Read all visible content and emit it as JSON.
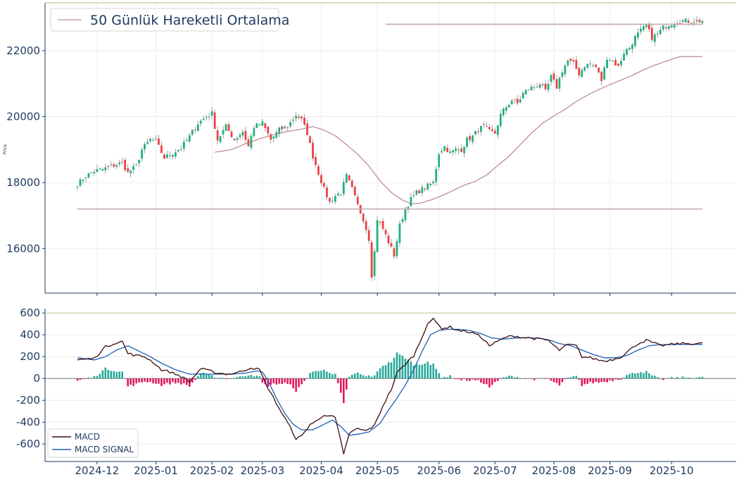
{
  "colors": {
    "up": "#1db07a",
    "down": "#ef3e3e",
    "wick": "#8e8e8e",
    "ma": "#b06e83",
    "hline": "#c3a8b3",
    "macd": "#3b0b0b",
    "signal": "#1f5fb8",
    "hist_pos": "#27a79a",
    "hist_neg": "#e0165d",
    "axis": "#1e3a5f",
    "grid": "#ececec",
    "top_line": "#c8c39a"
  },
  "price_panel": {
    "ylabel": "Price",
    "yticks": [
      16000,
      18000,
      20000,
      22000
    ],
    "ylim": [
      14650,
      23450
    ],
    "legend": {
      "label": "50 Günlük Hareketli Ortalama"
    }
  },
  "macd_panel": {
    "yticks": [
      600,
      400,
      200,
      0,
      -200,
      -400,
      -600
    ],
    "ylim": [
      -760,
      640
    ],
    "legend": {
      "macd_label": "MACD",
      "signal_label": "MACD SIGNAL"
    }
  },
  "xaxis": {
    "labels": [
      "2024-12",
      "2025-01",
      "2025-02",
      "2025-03",
      "2025-04",
      "2025-05",
      "2025-06",
      "2025-07",
      "2025-08",
      "2025-09",
      "2025-10"
    ],
    "tick_index": [
      7,
      28,
      48,
      66,
      87,
      107,
      129,
      149,
      170,
      190,
      212
    ]
  },
  "chart_data": [
    {
      "type": "candlestick",
      "title": "",
      "ylabel": "Price",
      "n_points": 224,
      "start_date": "2024-11-25",
      "end_date": "2025-10-03",
      "close_anchors": [
        [
          0,
          17950
        ],
        [
          3,
          18200
        ],
        [
          6,
          18350
        ],
        [
          9,
          18400
        ],
        [
          12,
          18500
        ],
        [
          16,
          18600
        ],
        [
          18,
          18300
        ],
        [
          21,
          18500
        ],
        [
          23,
          19000
        ],
        [
          26,
          19300
        ],
        [
          28,
          19250
        ],
        [
          31,
          18750
        ],
        [
          34,
          18900
        ],
        [
          37,
          19050
        ],
        [
          40,
          19400
        ],
        [
          43,
          19800
        ],
        [
          46,
          20000
        ],
        [
          48,
          20100
        ],
        [
          50,
          19300
        ],
        [
          53,
          19700
        ],
        [
          56,
          19300
        ],
        [
          59,
          19550
        ],
        [
          61,
          19100
        ],
        [
          63,
          19700
        ],
        [
          66,
          19800
        ],
        [
          69,
          19300
        ],
        [
          72,
          19600
        ],
        [
          75,
          19700
        ],
        [
          78,
          20050
        ],
        [
          80,
          19900
        ],
        [
          82,
          19500
        ],
        [
          84,
          18800
        ],
        [
          86,
          18300
        ],
        [
          88,
          17800
        ],
        [
          90,
          17400
        ],
        [
          92,
          17600
        ],
        [
          94,
          17700
        ],
        [
          96,
          18200
        ],
        [
          98,
          17800
        ],
        [
          100,
          17300
        ],
        [
          102,
          16900
        ],
        [
          104,
          16300
        ],
        [
          105,
          15200
        ],
        [
          106,
          15900
        ],
        [
          107,
          16900
        ],
        [
          109,
          16600
        ],
        [
          111,
          16200
        ],
        [
          113,
          15800
        ],
        [
          115,
          16700
        ],
        [
          117,
          17200
        ],
        [
          119,
          17500
        ],
        [
          121,
          17700
        ],
        [
          124,
          17850
        ],
        [
          127,
          18000
        ],
        [
          129,
          18900
        ],
        [
          131,
          19100
        ],
        [
          133,
          18900
        ],
        [
          135,
          19000
        ],
        [
          137,
          19000
        ],
        [
          139,
          19300
        ],
        [
          141,
          19400
        ],
        [
          143,
          19600
        ],
        [
          145,
          19700
        ],
        [
          147,
          19550
        ],
        [
          149,
          19500
        ],
        [
          151,
          20050
        ],
        [
          153,
          20300
        ],
        [
          155,
          20500
        ],
        [
          157,
          20400
        ],
        [
          159,
          20700
        ],
        [
          161,
          20850
        ],
        [
          163,
          20900
        ],
        [
          165,
          21000
        ],
        [
          167,
          20750
        ],
        [
          169,
          21200
        ],
        [
          171,
          20900
        ],
        [
          173,
          21400
        ],
        [
          175,
          21700
        ],
        [
          177,
          21600
        ],
        [
          179,
          21300
        ],
        [
          181,
          21550
        ],
        [
          183,
          21600
        ],
        [
          185,
          21500
        ],
        [
          187,
          21100
        ],
        [
          189,
          21800
        ],
        [
          191,
          21700
        ],
        [
          193,
          21500
        ],
        [
          195,
          21950
        ],
        [
          197,
          22100
        ],
        [
          199,
          22400
        ],
        [
          201,
          22600
        ],
        [
          203,
          22750
        ],
        [
          205,
          22400
        ],
        [
          207,
          22500
        ],
        [
          209,
          22700
        ],
        [
          211,
          22800
        ],
        [
          213,
          22850
        ],
        [
          215,
          22900
        ]
      ],
      "ma_start_index": 49,
      "ma_anchors": [
        [
          49,
          18920
        ],
        [
          55,
          19000
        ],
        [
          60,
          19180
        ],
        [
          65,
          19330
        ],
        [
          70,
          19450
        ],
        [
          75,
          19550
        ],
        [
          80,
          19620
        ],
        [
          84,
          19700
        ],
        [
          88,
          19590
        ],
        [
          92,
          19420
        ],
        [
          96,
          19150
        ],
        [
          100,
          18860
        ],
        [
          104,
          18500
        ],
        [
          108,
          18050
        ],
        [
          112,
          17700
        ],
        [
          116,
          17470
        ],
        [
          119,
          17360
        ],
        [
          122,
          17370
        ],
        [
          126,
          17470
        ],
        [
          130,
          17600
        ],
        [
          134,
          17760
        ],
        [
          138,
          17920
        ],
        [
          142,
          18040
        ],
        [
          146,
          18230
        ],
        [
          150,
          18520
        ],
        [
          154,
          18800
        ],
        [
          158,
          19150
        ],
        [
          162,
          19500
        ],
        [
          166,
          19800
        ],
        [
          170,
          20020
        ],
        [
          174,
          20220
        ],
        [
          178,
          20460
        ],
        [
          182,
          20650
        ],
        [
          186,
          20820
        ],
        [
          190,
          20970
        ],
        [
          194,
          21110
        ],
        [
          198,
          21250
        ],
        [
          202,
          21420
        ],
        [
          206,
          21560
        ],
        [
          210,
          21680
        ],
        [
          215,
          21820
        ]
      ],
      "horizontal_lines": [
        22800,
        17200
      ],
      "series": [
        {
          "name": "50 Günlük Hareketli Ortalama",
          "type": "line"
        }
      ]
    },
    {
      "type": "line",
      "title": "",
      "macd_anchors": [
        [
          0,
          170
        ],
        [
          6,
          185
        ],
        [
          10,
          290
        ],
        [
          14,
          330
        ],
        [
          16,
          340
        ],
        [
          18,
          230
        ],
        [
          21,
          210
        ],
        [
          24,
          200
        ],
        [
          27,
          150
        ],
        [
          30,
          80
        ],
        [
          33,
          60
        ],
        [
          37,
          20
        ],
        [
          40,
          -30
        ],
        [
          44,
          90
        ],
        [
          47,
          70
        ],
        [
          50,
          50
        ],
        [
          54,
          40
        ],
        [
          58,
          60
        ],
        [
          62,
          100
        ],
        [
          65,
          80
        ],
        [
          67,
          -40
        ],
        [
          70,
          -180
        ],
        [
          73,
          -320
        ],
        [
          76,
          -450
        ],
        [
          78,
          -550
        ],
        [
          80,
          -530
        ],
        [
          83,
          -420
        ],
        [
          86,
          -380
        ],
        [
          88,
          -330
        ],
        [
          90,
          -340
        ],
        [
          92,
          -360
        ],
        [
          94,
          -580
        ],
        [
          95,
          -700
        ],
        [
          97,
          -500
        ],
        [
          100,
          -460
        ],
        [
          103,
          -480
        ],
        [
          106,
          -430
        ],
        [
          109,
          -250
        ],
        [
          112,
          -100
        ],
        [
          114,
          50
        ],
        [
          117,
          130
        ],
        [
          120,
          210
        ],
        [
          122,
          320
        ],
        [
          125,
          510
        ],
        [
          127,
          540
        ],
        [
          130,
          460
        ],
        [
          133,
          470
        ],
        [
          136,
          440
        ],
        [
          139,
          430
        ],
        [
          142,
          410
        ],
        [
          145,
          360
        ],
        [
          147,
          300
        ],
        [
          150,
          340
        ],
        [
          153,
          380
        ],
        [
          156,
          390
        ],
        [
          159,
          375
        ],
        [
          162,
          370
        ],
        [
          165,
          360
        ],
        [
          168,
          350
        ],
        [
          170,
          300
        ],
        [
          172,
          260
        ],
        [
          175,
          310
        ],
        [
          178,
          300
        ],
        [
          180,
          200
        ],
        [
          183,
          190
        ],
        [
          186,
          170
        ],
        [
          188,
          160
        ],
        [
          191,
          175
        ],
        [
          194,
          200
        ],
        [
          197,
          260
        ],
        [
          200,
          320
        ],
        [
          203,
          350
        ],
        [
          205,
          330
        ],
        [
          208,
          300
        ],
        [
          211,
          310
        ],
        [
          215,
          320
        ]
      ],
      "signal_anchors": [
        [
          0,
          190
        ],
        [
          6,
          170
        ],
        [
          10,
          200
        ],
        [
          14,
          260
        ],
        [
          18,
          300
        ],
        [
          22,
          250
        ],
        [
          26,
          200
        ],
        [
          30,
          140
        ],
        [
          35,
          80
        ],
        [
          40,
          40
        ],
        [
          45,
          40
        ],
        [
          50,
          40
        ],
        [
          55,
          40
        ],
        [
          60,
          50
        ],
        [
          64,
          70
        ],
        [
          66,
          60
        ],
        [
          68,
          -20
        ],
        [
          71,
          -180
        ],
        [
          74,
          -320
        ],
        [
          77,
          -420
        ],
        [
          80,
          -470
        ],
        [
          84,
          -470
        ],
        [
          88,
          -420
        ],
        [
          91,
          -380
        ],
        [
          94,
          -440
        ],
        [
          97,
          -520
        ],
        [
          100,
          -510
        ],
        [
          104,
          -490
        ],
        [
          108,
          -410
        ],
        [
          111,
          -290
        ],
        [
          114,
          -180
        ],
        [
          117,
          -60
        ],
        [
          120,
          80
        ],
        [
          123,
          250
        ],
        [
          126,
          400
        ],
        [
          129,
          440
        ],
        [
          132,
          450
        ],
        [
          136,
          450
        ],
        [
          140,
          440
        ],
        [
          144,
          410
        ],
        [
          148,
          370
        ],
        [
          152,
          360
        ],
        [
          156,
          370
        ],
        [
          160,
          375
        ],
        [
          164,
          370
        ],
        [
          168,
          355
        ],
        [
          172,
          320
        ],
        [
          176,
          300
        ],
        [
          180,
          260
        ],
        [
          184,
          220
        ],
        [
          188,
          190
        ],
        [
          192,
          190
        ],
        [
          196,
          210
        ],
        [
          200,
          260
        ],
        [
          204,
          300
        ],
        [
          208,
          310
        ],
        [
          212,
          310
        ],
        [
          215,
          312
        ]
      ],
      "series": [
        {
          "name": "MACD"
        },
        {
          "name": "MACD SIGNAL"
        }
      ]
    }
  ]
}
